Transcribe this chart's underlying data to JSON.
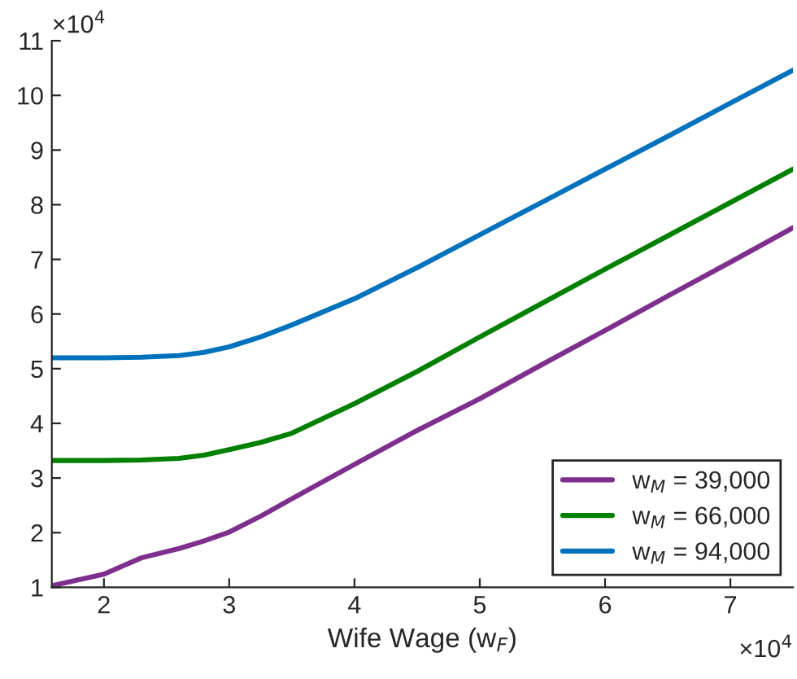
{
  "chart_data": {
    "type": "line",
    "xlabel": "Wife Wage (w$_{F}$)",
    "x": [
      1.584,
      2.0,
      2.3,
      2.6,
      2.8,
      3.0,
      3.25,
      3.5,
      4.0,
      4.5,
      5.0,
      5.5,
      6.0,
      6.5,
      7.0,
      7.5
    ],
    "series": [
      {
        "name": "w$_{M}$ = 39,000",
        "color": "#7e2f8e",
        "values": [
          1.03,
          1.24,
          1.54,
          1.71,
          1.85,
          2.01,
          2.3,
          2.62,
          3.25,
          3.87,
          4.45,
          5.08,
          5.7,
          6.33,
          6.95,
          7.58
        ]
      },
      {
        "name": "w$_{M}$ = 66,000",
        "color": "#008000",
        "values": [
          3.32,
          3.32,
          3.33,
          3.36,
          3.42,
          3.52,
          3.65,
          3.82,
          4.36,
          4.95,
          5.58,
          6.2,
          6.82,
          7.43,
          8.04,
          8.65
        ]
      },
      {
        "name": "w$_{M}$ = 94,000",
        "color": "#0072bd",
        "values": [
          5.2,
          5.2,
          5.21,
          5.24,
          5.3,
          5.4,
          5.58,
          5.8,
          6.28,
          6.85,
          7.45,
          8.05,
          8.65,
          9.25,
          9.86,
          10.46
        ]
      }
    ],
    "xlim": [
      1.584,
      7.5
    ],
    "xticks": [
      2,
      3,
      4,
      5,
      6,
      7
    ],
    "ylim": [
      1,
      11
    ],
    "yticks": [
      1,
      2,
      3,
      4,
      5,
      6,
      7,
      8,
      9,
      10,
      11
    ],
    "annotations": [
      "×10$^{4}$",
      "×10$^{4}$"
    ],
    "legend": "bottom right",
    "grid": false,
    "line_style": "solid",
    "marker": "none"
  }
}
